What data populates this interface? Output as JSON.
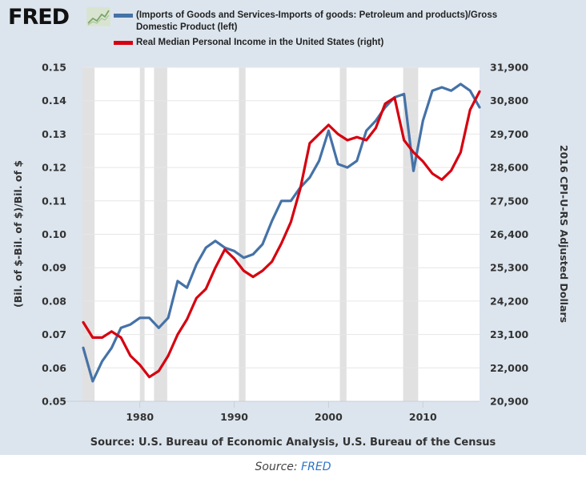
{
  "logo": {
    "text": "FRED",
    "icon": "chart-line-icon"
  },
  "chart_data": {
    "type": "line",
    "title": "",
    "xlabel": "",
    "ylabel": "(Bil. of $-Bil. of $)/Bil. of $",
    "y2label": "2016 CPI-U-RS Adjusted Dollars",
    "xlim": [
      1974,
      2016
    ],
    "ylim": [
      0.05,
      0.15
    ],
    "y2lim": [
      20900,
      31900
    ],
    "x_ticks": [
      1980,
      1990,
      2000,
      2010
    ],
    "x_tick_labels": [
      "1980",
      "1990",
      "2000",
      "2010"
    ],
    "y_ticks": [
      0.05,
      0.06,
      0.07,
      0.08,
      0.09,
      0.1,
      0.11,
      0.12,
      0.13,
      0.14,
      0.15
    ],
    "y_tick_labels": [
      "0.05",
      "0.06",
      "0.07",
      "0.08",
      "0.09",
      "0.10",
      "0.11",
      "0.12",
      "0.13",
      "0.14",
      "0.15"
    ],
    "y2_ticks": [
      20900,
      22000,
      23100,
      24200,
      25300,
      26400,
      27500,
      28600,
      29700,
      30800,
      31900
    ],
    "y2_tick_labels": [
      "20,900",
      "22,000",
      "23,100",
      "24,200",
      "25,300",
      "26,400",
      "27,500",
      "28,600",
      "29,700",
      "30,800",
      "31,900"
    ],
    "grid": true,
    "legend_position": "top",
    "x": [
      1974,
      1975,
      1976,
      1977,
      1978,
      1979,
      1980,
      1981,
      1982,
      1983,
      1984,
      1985,
      1986,
      1987,
      1988,
      1989,
      1990,
      1991,
      1992,
      1993,
      1994,
      1995,
      1996,
      1997,
      1998,
      1999,
      2000,
      2001,
      2002,
      2003,
      2004,
      2005,
      2006,
      2007,
      2008,
      2009,
      2010,
      2011,
      2012,
      2013,
      2014,
      2015,
      2016
    ],
    "series": [
      {
        "name": "(Imports of Goods and Services-Imports of goods: Petroleum and products)/Gross Domestic Product (left)",
        "axis": "left",
        "color": "#4572a7",
        "values": [
          0.066,
          0.056,
          0.062,
          0.066,
          0.072,
          0.073,
          0.075,
          0.075,
          0.072,
          0.075,
          0.086,
          0.084,
          0.091,
          0.096,
          0.098,
          0.096,
          0.095,
          0.093,
          0.094,
          0.097,
          0.104,
          0.11,
          0.11,
          0.114,
          0.117,
          0.122,
          0.131,
          0.121,
          0.12,
          0.122,
          0.131,
          0.134,
          0.138,
          0.141,
          0.142,
          0.119,
          0.134,
          0.143,
          0.144,
          0.143,
          0.145,
          0.143,
          0.138
        ]
      },
      {
        "name": "Real Median Personal Income in the United States (right)",
        "axis": "right",
        "color": "#d6000f",
        "values": [
          23500,
          23000,
          23000,
          23200,
          23000,
          22400,
          22100,
          21700,
          21900,
          22400,
          23100,
          23600,
          24300,
          24600,
          25300,
          25900,
          25600,
          25200,
          25000,
          25200,
          25500,
          26100,
          26800,
          27900,
          29400,
          29700,
          30000,
          29700,
          29500,
          29600,
          29500,
          29900,
          30700,
          30900,
          29500,
          29100,
          28800,
          28400,
          28200,
          28500,
          29100,
          30500,
          31100
        ]
      }
    ],
    "recessions": [
      [
        1973.9,
        1975.2
      ],
      [
        1980.0,
        1980.5
      ],
      [
        1981.5,
        1982.9
      ],
      [
        1990.5,
        1991.2
      ],
      [
        2001.2,
        2001.9
      ],
      [
        2007.9,
        2009.5
      ]
    ],
    "source": "Source: U.S. Bureau of Economic Analysis, U.S. Bureau of the Census"
  },
  "caption": {
    "prefix": "Source: ",
    "link": "FRED"
  },
  "colors": {
    "panel": "#dce5ee",
    "recession": "#e1e1e1",
    "grid": "#e6e6e6"
  }
}
